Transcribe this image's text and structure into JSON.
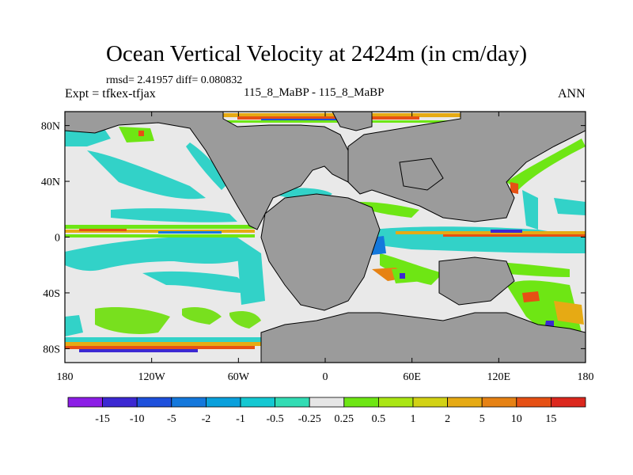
{
  "title": "Ocean Vertical Velocity at 2424m (in cm/day)",
  "stats": "rmsd= 2.41957 diff= 0.080832",
  "expt": "Expt = tfkex-tfjax",
  "case": "115_8_MaBP - 115_8_MaBP",
  "season": "ANN",
  "lat_ticks": [
    "80N",
    "40N",
    "0",
    "40S",
    "80S"
  ],
  "lon_ticks": [
    "180",
    "120W",
    "60W",
    "0",
    "60E",
    "120E",
    "180"
  ],
  "colorbar": {
    "labels": [
      "-15",
      "-10",
      "-5",
      "-2",
      "-1",
      "-0.5",
      "-0.25",
      "0.25",
      "0.5",
      "1",
      "2",
      "5",
      "10",
      "15"
    ],
    "colors": [
      "#8c1ee6",
      "#3c28d2",
      "#1e50dc",
      "#1478dc",
      "#0aa0dc",
      "#14c8d2",
      "#32dcb4",
      "#e6e6e6",
      "#6ee614",
      "#aae614",
      "#d2d214",
      "#e6aa14",
      "#e68214",
      "#e65014",
      "#dc281e"
    ]
  },
  "colors": {
    "land": "#9b9b9b",
    "background": "#ffffff"
  }
}
